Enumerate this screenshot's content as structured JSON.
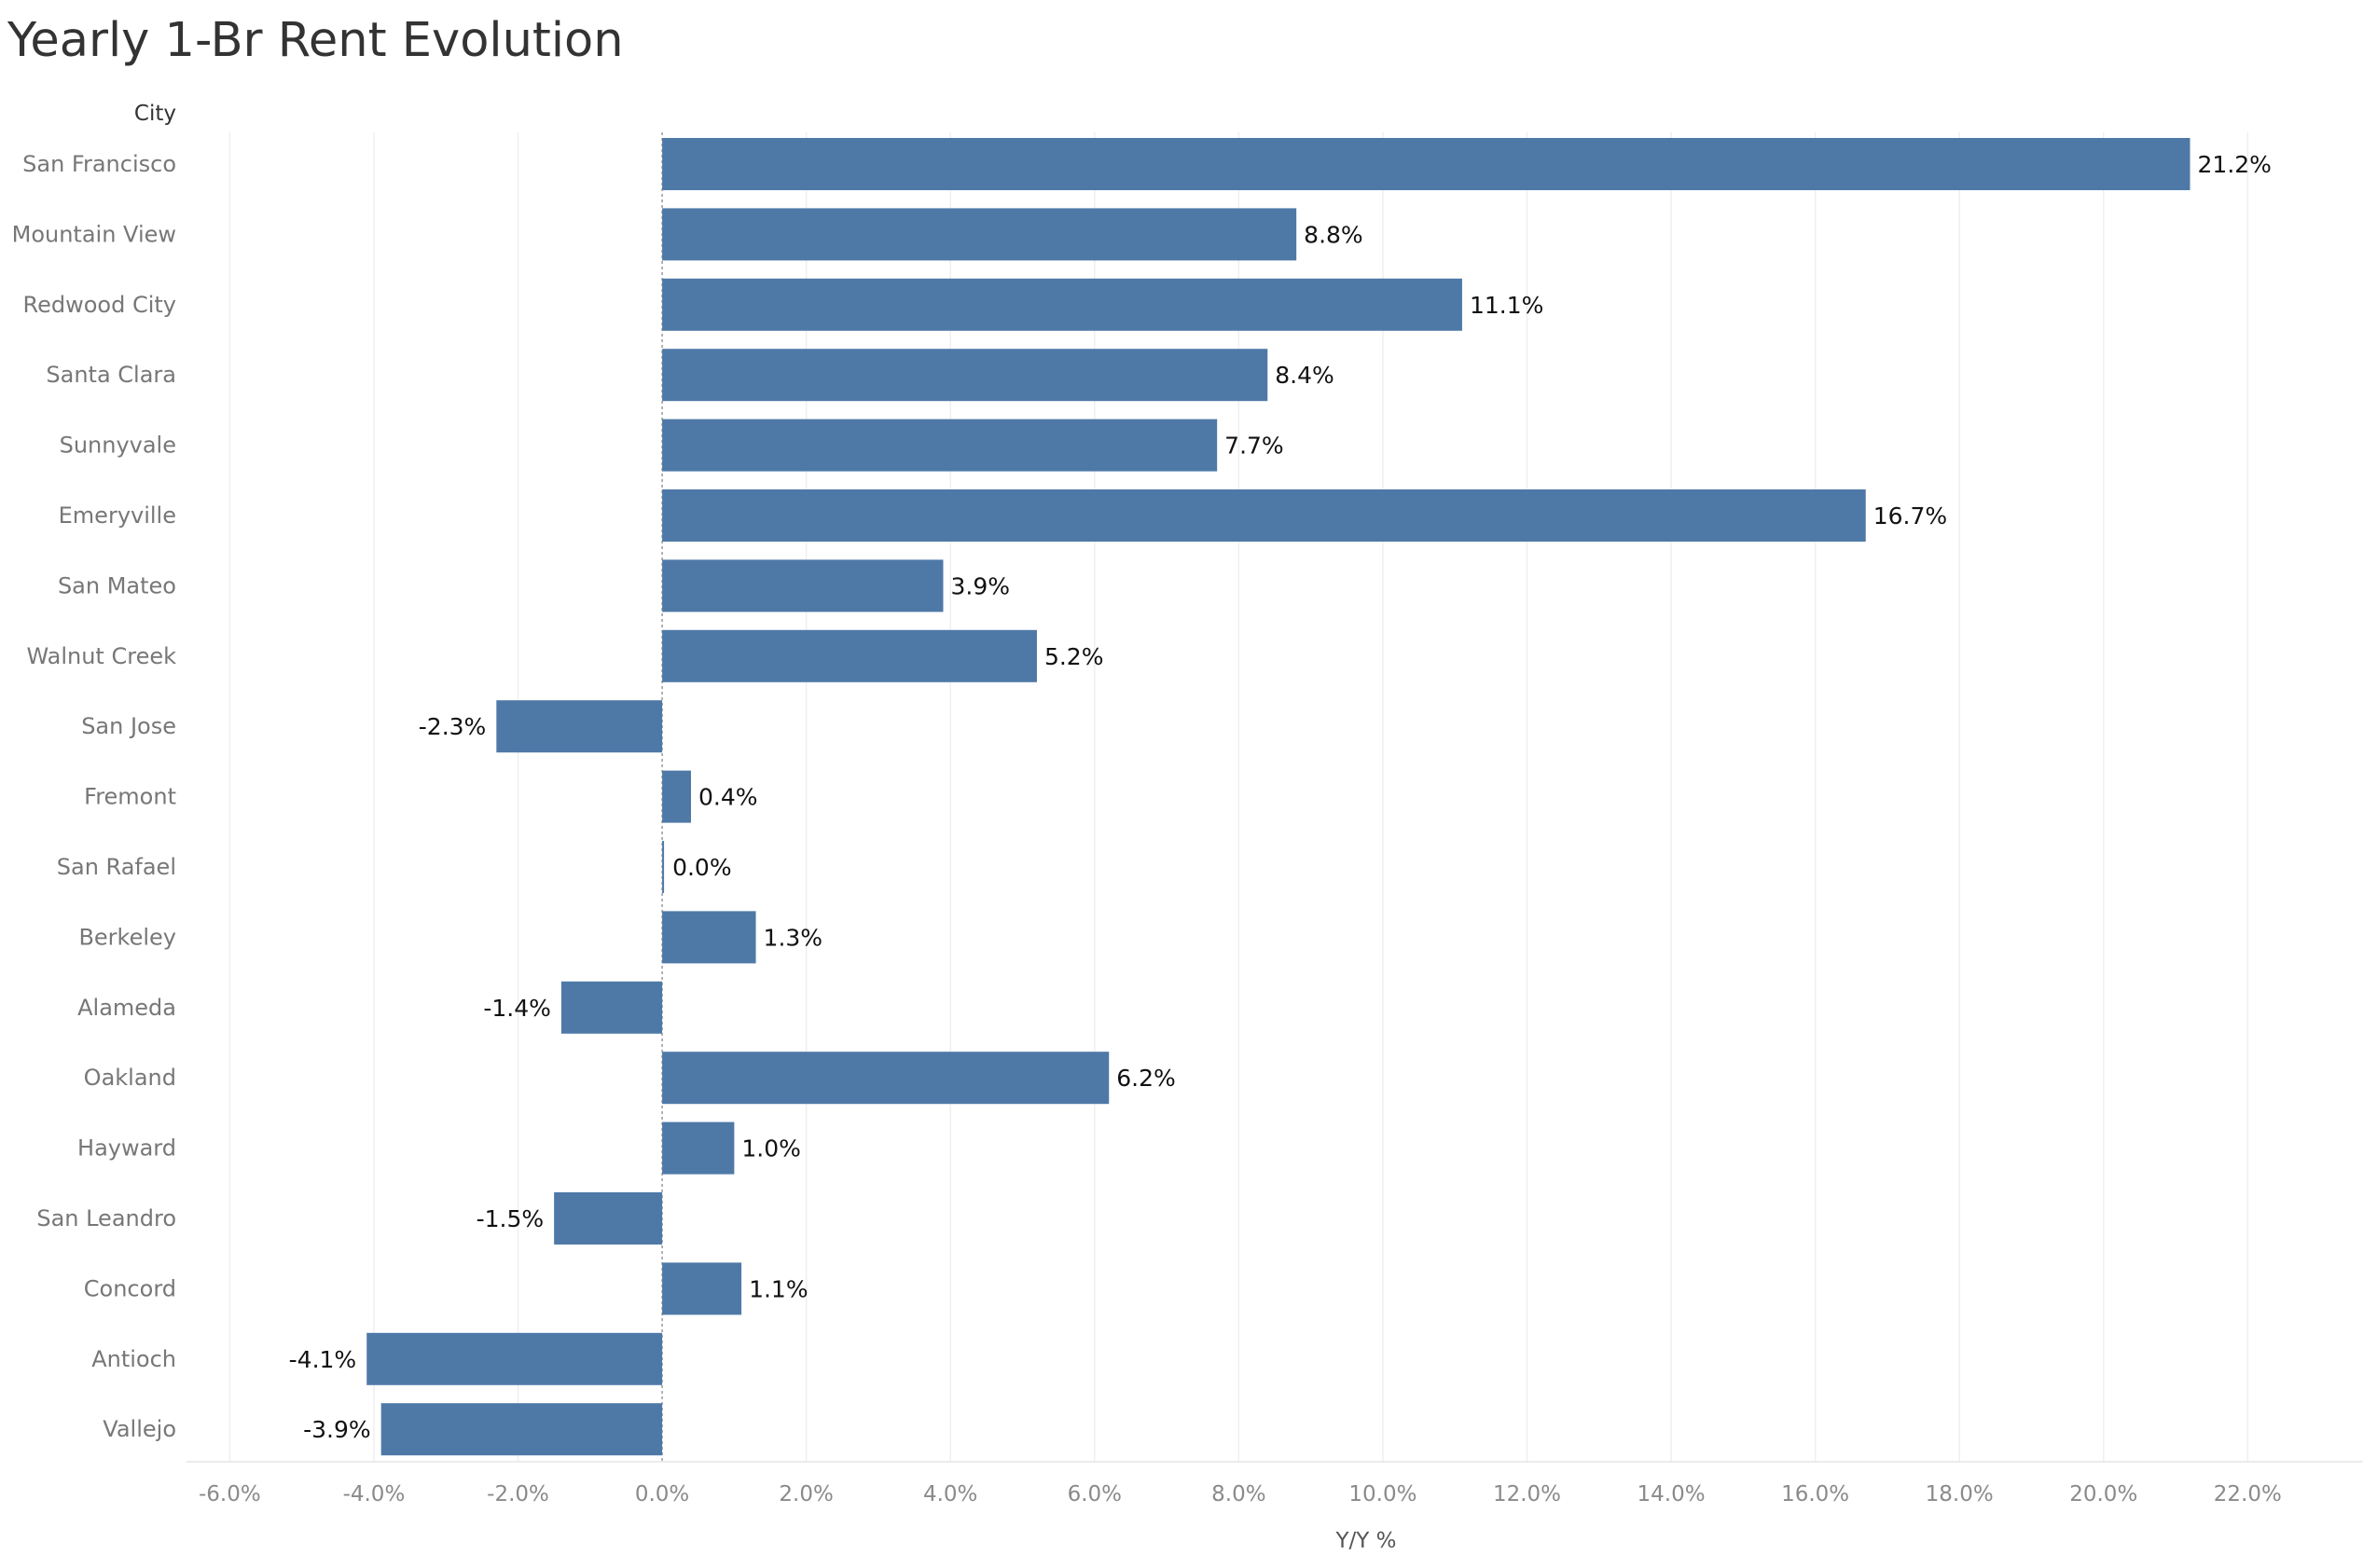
{
  "chart_data": {
    "type": "bar",
    "orientation": "horizontal",
    "title": "Yearly 1-Br Rent Evolution",
    "row_header": "City",
    "xlabel": "Y/Y %",
    "categories": [
      "San Francisco",
      "Mountain View",
      "Redwood City",
      "Santa Clara",
      "Sunnyvale",
      "Emeryville",
      "San Mateo",
      "Walnut Creek",
      "San Jose",
      "Fremont",
      "San Rafael",
      "Berkeley",
      "Alameda",
      "Oakland",
      "Hayward",
      "San Leandro",
      "Concord",
      "Antioch",
      "Vallejo"
    ],
    "values": [
      21.2,
      8.8,
      11.1,
      8.4,
      7.7,
      16.7,
      3.9,
      5.2,
      -2.3,
      0.4,
      0.0,
      1.3,
      -1.4,
      6.2,
      1.0,
      -1.5,
      1.1,
      -4.1,
      -3.9
    ],
    "value_labels": [
      "21.2%",
      "8.8%",
      "11.1%",
      "8.4%",
      "7.7%",
      "16.7%",
      "3.9%",
      "5.2%",
      "-2.3%",
      "0.4%",
      "0.0%",
      "1.3%",
      "-1.4%",
      "6.2%",
      "1.0%",
      "-1.5%",
      "1.1%",
      "-4.1%",
      "-3.9%"
    ],
    "xticks": [
      -6,
      -4,
      -2,
      0,
      2,
      4,
      6,
      8,
      10,
      12,
      14,
      16,
      18,
      20,
      22
    ],
    "xtick_labels": [
      "-6.0%",
      "-4.0%",
      "-2.0%",
      "0.0%",
      "2.0%",
      "4.0%",
      "6.0%",
      "8.0%",
      "10.0%",
      "12.0%",
      "14.0%",
      "16.0%",
      "18.0%",
      "20.0%",
      "22.0%"
    ],
    "xlim": [
      -6.6,
      23.6
    ],
    "grid": true,
    "colors": {
      "bar": "#4e79a7",
      "grid": "#efefef",
      "zero_line": "#9a9a9a",
      "tick_text": "#8a8a8a",
      "category_text": "#777777",
      "value_text": "#111111"
    }
  }
}
